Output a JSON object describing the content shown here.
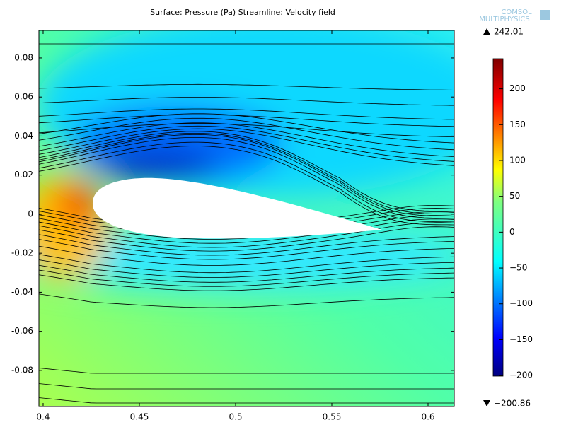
{
  "chart_data": {
    "type": "surface",
    "title": "Surface: Pressure (Pa) Streamline: Velocity field",
    "logo": [
      "COMSOL",
      "MULTIPHYSICS"
    ],
    "xlim": [
      0.3978,
      0.6136
    ],
    "xticks": [
      0.4,
      0.45,
      0.5,
      0.55,
      0.6
    ],
    "ylim": [
      -0.0985,
      0.0941
    ],
    "yticks": [
      -0.08,
      -0.06,
      -0.04,
      -0.02,
      0,
      0.02,
      0.04,
      0.06,
      0.08
    ],
    "colorbar": {
      "max_label": 242.01,
      "min_label": {
        "value": -200.86,
        "label": "−200.86"
      },
      "ticks": [
        {
          "value": -200,
          "label": "−200"
        },
        {
          "value": -150,
          "label": "−150"
        },
        {
          "value": -100,
          "label": "−100"
        },
        {
          "value": -50,
          "label": "−50"
        },
        0,
        50,
        100,
        150,
        200
      ]
    }
  }
}
